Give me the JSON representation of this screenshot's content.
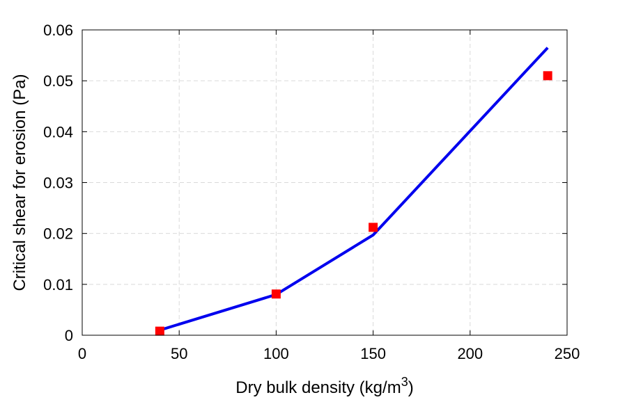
{
  "chart_data": {
    "type": "line",
    "xlabel": "Dry bulk density (kg/m",
    "xlabel_superscript": "3",
    "xlabel_suffix": ")",
    "ylabel": "Critical shear for erosion (Pa)",
    "xlim": [
      0,
      250
    ],
    "ylim": [
      0,
      0.06
    ],
    "xticks": [
      0,
      50,
      100,
      150,
      200,
      250
    ],
    "xtick_labels": [
      "0",
      "50",
      "100",
      "150",
      "200",
      "250"
    ],
    "yticks": [
      0,
      0.01,
      0.02,
      0.03,
      0.04,
      0.05,
      0.06
    ],
    "ytick_labels": [
      "0",
      "0.01",
      "0.02",
      "0.03",
      "0.04",
      "0.05",
      "0.06"
    ],
    "grid": true,
    "series": [
      {
        "kind": "line",
        "color": "#0000ee",
        "x": [
          40,
          100,
          150,
          240
        ],
        "y": [
          0.001,
          0.008,
          0.0197,
          0.0565
        ]
      },
      {
        "kind": "markers",
        "marker": "square",
        "color": "#ff0000",
        "x": [
          40,
          100,
          150,
          240
        ],
        "y": [
          0.0008,
          0.0081,
          0.0212,
          0.051
        ]
      }
    ]
  }
}
